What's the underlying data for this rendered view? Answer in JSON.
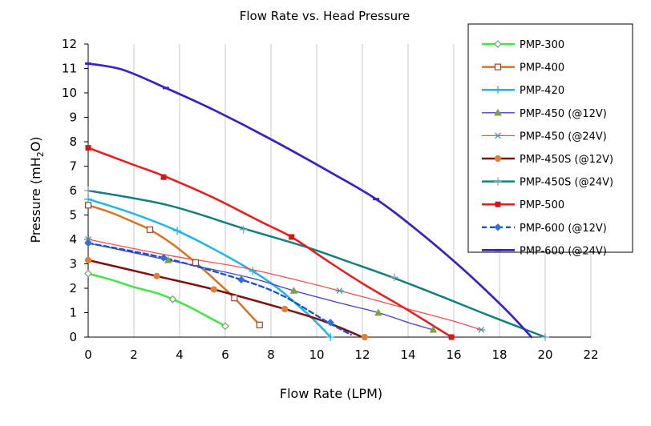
{
  "chart_data": {
    "type": "line",
    "title": "Flow Rate vs. Head Pressure",
    "xlabel": "Flow Rate (LPM)",
    "ylabel_main": "Pressure (mH",
    "ylabel_sub": "2",
    "ylabel_end": "O)",
    "xlim": [
      0,
      22
    ],
    "ylim": [
      0,
      12
    ],
    "xticks": [
      "0",
      "2",
      "4",
      "6",
      "8",
      "10",
      "12",
      "14",
      "16",
      "18",
      "20",
      "22"
    ],
    "yticks": [
      "0",
      "1",
      "2",
      "3",
      "4",
      "5",
      "6",
      "7",
      "8",
      "9",
      "10",
      "11",
      "12"
    ],
    "grid": "vertical",
    "legend_position": "right",
    "series": [
      {
        "name": "PMP-300",
        "color": "#3ee83e",
        "width": 2.5,
        "dash": "",
        "marker": "diamond-open",
        "markerColor": "#6aa86a",
        "points": [
          [
            0,
            2.6
          ],
          [
            1,
            2.35
          ],
          [
            2,
            2.05
          ],
          [
            3,
            1.8
          ],
          [
            3.7,
            1.55
          ],
          [
            4.5,
            1.2
          ],
          [
            5.3,
            0.8
          ],
          [
            6,
            0.45
          ]
        ],
        "markers": [
          [
            0,
            2.6
          ],
          [
            3.7,
            1.55
          ],
          [
            6,
            0.45
          ]
        ]
      },
      {
        "name": "PMP-400",
        "color": "#e07020",
        "width": 2.5,
        "dash": "",
        "marker": "square-open",
        "markerColor": "#a04020",
        "points": [
          [
            0,
            5.4
          ],
          [
            1,
            5.1
          ],
          [
            2,
            4.7
          ],
          [
            2.7,
            4.4
          ],
          [
            3.7,
            3.8
          ],
          [
            4.7,
            3.05
          ],
          [
            5.6,
            2.3
          ],
          [
            6.4,
            1.6
          ],
          [
            7,
            1.0
          ],
          [
            7.5,
            0.5
          ]
        ],
        "markers": [
          [
            0,
            5.4
          ],
          [
            2.7,
            4.4
          ],
          [
            4.7,
            3.05
          ],
          [
            6.4,
            1.6
          ],
          [
            7.5,
            0.5
          ]
        ]
      },
      {
        "name": "PMP-420",
        "color": "#1ab8ea",
        "width": 2.5,
        "dash": "",
        "marker": "plus",
        "markerColor": "#1ab8ea",
        "points": [
          [
            0,
            5.65
          ],
          [
            2,
            5.05
          ],
          [
            3.9,
            4.35
          ],
          [
            5.5,
            3.6
          ],
          [
            7.2,
            2.7
          ],
          [
            8.3,
            2.0
          ],
          [
            9.3,
            1.2
          ],
          [
            10.1,
            0.5
          ],
          [
            10.6,
            0
          ]
        ],
        "markers": [
          [
            0,
            5.65
          ],
          [
            3.9,
            4.35
          ],
          [
            7.2,
            2.7
          ],
          [
            10.6,
            0
          ]
        ]
      },
      {
        "name": "PMP-450 (@12V)",
        "color": "#4040c8",
        "width": 1.3,
        "dash": "",
        "marker": "triangle",
        "markerColor": "#80a040",
        "points": [
          [
            0,
            3.85
          ],
          [
            3.5,
            3.15
          ],
          [
            7,
            2.45
          ],
          [
            9,
            1.9
          ],
          [
            11,
            1.4
          ],
          [
            12.7,
            1.0
          ],
          [
            14,
            0.6
          ],
          [
            15.1,
            0.3
          ]
        ],
        "markers": [
          [
            3.5,
            3.15
          ],
          [
            9,
            1.9
          ],
          [
            12.7,
            1.0
          ],
          [
            15.1,
            0.3
          ]
        ]
      },
      {
        "name": "PMP-450 (@24V)",
        "color": "#f05050",
        "width": 1.3,
        "dash": "",
        "marker": "star",
        "markerColor": "#5f8fa0",
        "points": [
          [
            0,
            4.0
          ],
          [
            3.5,
            3.35
          ],
          [
            7,
            2.8
          ],
          [
            11,
            1.9
          ],
          [
            14,
            1.15
          ],
          [
            16,
            0.65
          ],
          [
            17.2,
            0.3
          ]
        ],
        "markers": [
          [
            0,
            4.0
          ],
          [
            11,
            1.9
          ],
          [
            17.2,
            0.3
          ]
        ]
      },
      {
        "name": "PMP-450S (@12V)",
        "color": "#801010",
        "width": 2.5,
        "dash": "",
        "marker": "circle",
        "markerColor": "#e08030",
        "points": [
          [
            0,
            3.15
          ],
          [
            3,
            2.5
          ],
          [
            5.5,
            1.95
          ],
          [
            8.6,
            1.15
          ],
          [
            10,
            0.75
          ],
          [
            11,
            0.4
          ],
          [
            12,
            0
          ]
        ],
        "markers": [
          [
            0,
            3.15
          ],
          [
            3,
            2.5
          ],
          [
            5.5,
            1.95
          ],
          [
            8.6,
            1.15
          ],
          [
            12.1,
            0
          ]
        ]
      },
      {
        "name": "PMP-450S (@24V)",
        "color": "#108080",
        "width": 2.5,
        "dash": "",
        "marker": "plus",
        "markerColor": "#8aa0c0",
        "points": [
          [
            0,
            6.0
          ],
          [
            3.5,
            5.4
          ],
          [
            6.8,
            4.45
          ],
          [
            9.5,
            3.7
          ],
          [
            11.5,
            3.05
          ],
          [
            13.3,
            2.45
          ],
          [
            15.5,
            1.65
          ],
          [
            17.5,
            0.9
          ],
          [
            20,
            0
          ]
        ],
        "markers": [
          [
            0,
            6.0
          ],
          [
            6.8,
            4.4
          ],
          [
            13.4,
            2.45
          ],
          [
            20,
            0
          ]
        ]
      },
      {
        "name": "PMP-500",
        "color": "#f01818",
        "width": 2.5,
        "dash": "",
        "marker": "square",
        "markerColor": "#d01818",
        "points": [
          [
            0,
            7.75
          ],
          [
            2,
            7.05
          ],
          [
            3.3,
            6.6
          ],
          [
            5.5,
            5.7
          ],
          [
            7.5,
            4.75
          ],
          [
            8.9,
            4.1
          ],
          [
            10.5,
            3.1
          ],
          [
            12,
            2.2
          ],
          [
            14,
            1.1
          ],
          [
            15.9,
            0
          ]
        ],
        "markers": [
          [
            0,
            7.75
          ],
          [
            3.3,
            6.55
          ],
          [
            8.9,
            4.1
          ],
          [
            15.9,
            0
          ]
        ]
      },
      {
        "name": "PMP-600 (@12V)",
        "color": "#1a50c8",
        "width": 2.3,
        "dash": "6,4",
        "marker": "diamond",
        "markerColor": "#3070d8",
        "points": [
          [
            0,
            3.85
          ],
          [
            3.3,
            3.25
          ],
          [
            6.7,
            2.35
          ],
          [
            8.5,
            1.7
          ],
          [
            10.5,
            0.6
          ],
          [
            11.5,
            0.1
          ]
        ],
        "markers": [
          [
            0,
            3.85
          ],
          [
            3.3,
            3.25
          ],
          [
            6.7,
            2.35
          ],
          [
            10.6,
            0.6
          ]
        ]
      },
      {
        "name": "PMP-600 (@24V)",
        "color": "#3a20c8",
        "width": 2.7,
        "dash": "",
        "marker": "dash",
        "markerColor": "#3a20c8",
        "points": [
          [
            0,
            11.2
          ],
          [
            1.5,
            10.95
          ],
          [
            3.4,
            10.2
          ],
          [
            5.5,
            9.3
          ],
          [
            8,
            8.1
          ],
          [
            10.5,
            6.8
          ],
          [
            12.6,
            5.65
          ],
          [
            14.5,
            4.3
          ],
          [
            16.5,
            2.7
          ],
          [
            18.3,
            1.1
          ],
          [
            19.4,
            0
          ]
        ],
        "markers": [
          [
            0,
            11.2
          ],
          [
            3.4,
            10.2
          ],
          [
            12.6,
            5.65
          ]
        ]
      }
    ]
  }
}
